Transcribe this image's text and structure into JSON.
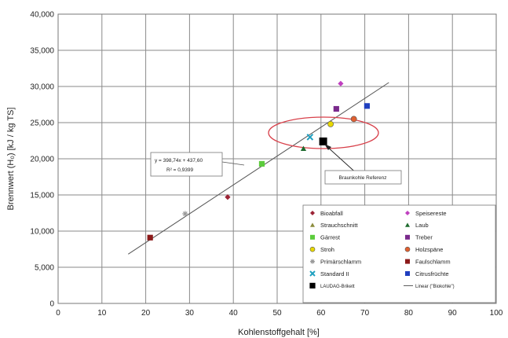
{
  "chart_data": {
    "type": "scatter",
    "xlabel": "Kohlenstoffgehalt [%]",
    "ylabel": "Brennwert (H₀) [kJ / kg TS]",
    "xlim": [
      0,
      100
    ],
    "ylim": [
      0,
      40000
    ],
    "x_ticks": [
      "0",
      "10",
      "20",
      "30",
      "40",
      "50",
      "60",
      "70",
      "80",
      "90",
      "100"
    ],
    "y_ticks": [
      "0",
      "5,000",
      "10,000",
      "15,000",
      "20,000",
      "25,000",
      "30,000",
      "35,000",
      "40,000"
    ],
    "grid": true,
    "series": [
      {
        "name": "Bioabfall",
        "color": "#9b2335",
        "marker": "diamond",
        "x": 38.7,
        "y": 14700
      },
      {
        "name": "Speisereste",
        "color": "#c040c0",
        "marker": "diamond",
        "x": 64.5,
        "y": 30400
      },
      {
        "name": "Strauchschnitt",
        "color": "#8c8c3c",
        "marker": "triangle",
        "x": 0,
        "y": 0,
        "plotted": false
      },
      {
        "name": "Laub",
        "color": "#1e6b2e",
        "marker": "triangle",
        "x": 56.0,
        "y": 21400
      },
      {
        "name": "Gärrest",
        "color": "#5ccc3c",
        "marker": "square",
        "x": 46.5,
        "y": 19300
      },
      {
        "name": "Treber",
        "color": "#7a2a8c",
        "marker": "square",
        "x": 63.5,
        "y": 26900
      },
      {
        "name": "Stroh",
        "color": "#e8d800",
        "marker": "circle",
        "x": 62.2,
        "y": 24800
      },
      {
        "name": "Holzspäne",
        "color": "#e06030",
        "marker": "circle",
        "x": 67.5,
        "y": 25500
      },
      {
        "name": "Primärschlamm",
        "color": "#9a9a9a",
        "marker": "star",
        "x": 29.0,
        "y": 12400
      },
      {
        "name": "Faulschlamm",
        "color": "#8b1a1a",
        "marker": "square",
        "x": 21.0,
        "y": 9100
      },
      {
        "name": "Standard II",
        "color": "#20a0c0",
        "marker": "x",
        "x": 57.5,
        "y": 23000
      },
      {
        "name": "Citrusfrüchte",
        "color": "#1f3fbf",
        "marker": "square",
        "x": 70.5,
        "y": 27300
      },
      {
        "name": "LAUDAG-Brikett",
        "color": "#000000",
        "marker": "square",
        "x": 60.5,
        "y": 22400
      }
    ],
    "trendline": {
      "legend": "Linear (\"Biokohle\")",
      "slope": 398.74,
      "intercept": 437.6,
      "x_range": [
        16,
        75.5
      ],
      "equation": "y = 398,74x + 437,60",
      "r2": "R² = 0,9399"
    },
    "annotations": {
      "reference_label": "Braunkohle Referenz"
    },
    "legend_placement": "bottom-right"
  }
}
